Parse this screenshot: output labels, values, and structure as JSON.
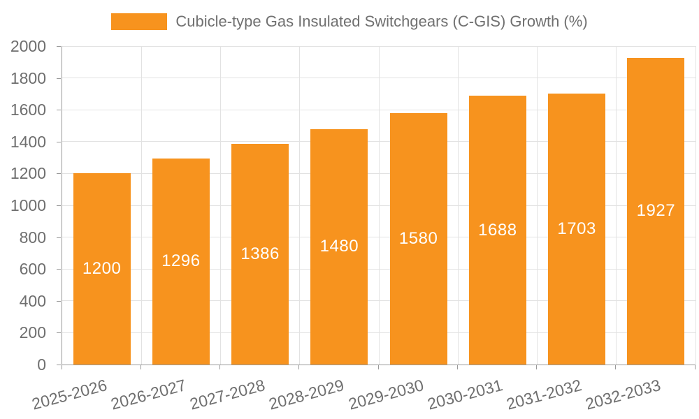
{
  "chart_data": {
    "type": "bar",
    "title": "",
    "legend": "Cubicle-type Gas Insulated Switchgears (C-GIS) Growth (%)",
    "legend_position": "top-center",
    "categories": [
      "2025-2026",
      "2026-2027",
      "2027-2028",
      "2028-2029",
      "2029-2030",
      "2030-2031",
      "2031-2032",
      "2032-2033"
    ],
    "values": [
      1200,
      1296,
      1386,
      1480,
      1580,
      1688,
      1703,
      1927
    ],
    "bar_value_labels": [
      "1200",
      "1296",
      "1386",
      "1480",
      "1580",
      "1688",
      "1703",
      "1927"
    ],
    "xlabel": "",
    "ylabel": "",
    "ylim": [
      0,
      2000
    ],
    "y_ticks": [
      0,
      200,
      400,
      600,
      800,
      1000,
      1200,
      1400,
      1600,
      1800,
      2000
    ],
    "grid": true,
    "x_label_rotation_deg": -15,
    "colors": {
      "bar": "#F7931E",
      "bar_label": "#FFFFFF",
      "axis_line": "#999999",
      "grid_line": "#E2E2E2",
      "tick_mark": "#999999",
      "tick_label": "#6F6F6F",
      "legend_text": "#707070",
      "background": "#FFFFFF"
    }
  }
}
